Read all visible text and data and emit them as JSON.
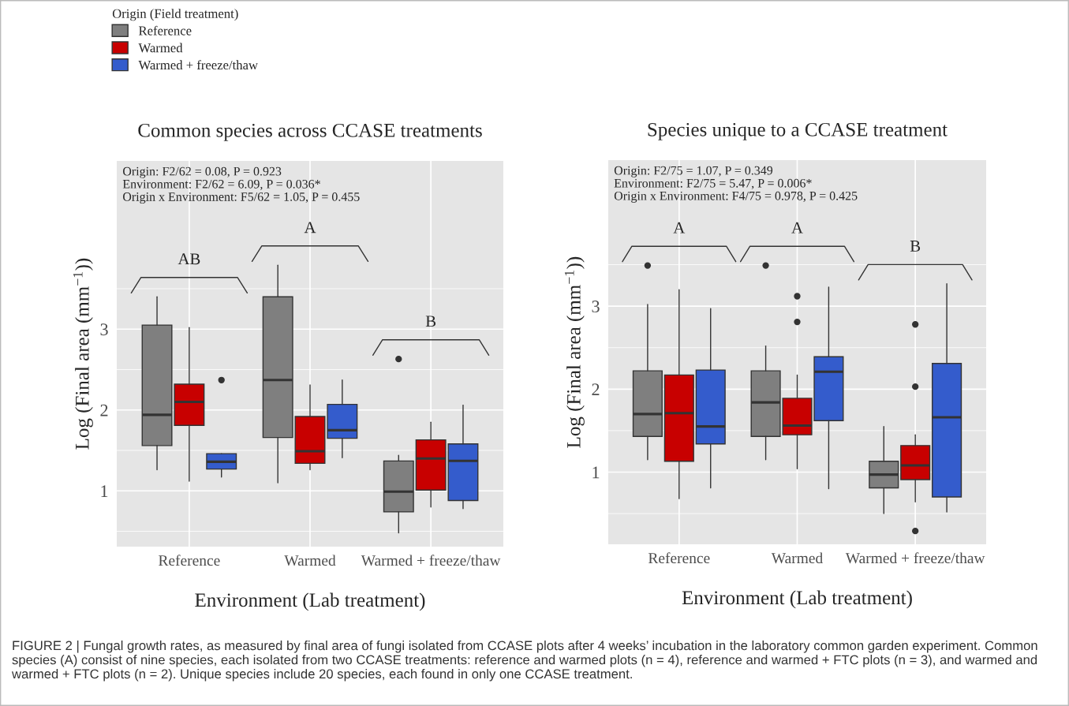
{
  "chart_data": [
    {
      "type": "box",
      "title": "Common species across CCASE treatments",
      "xlabel": "Environment (Lab treatment)",
      "ylabel": "Log (Final area (mm$^{−1}$))",
      "legend_title": "Origin (Field treatment)",
      "legend": "top left",
      "grid": true,
      "categories": [
        "Reference",
        "Warmed",
        "Warmed + freeze/thaw"
      ],
      "ylim": [
        0.31,
        5.08
      ],
      "yticks": [
        1,
        2,
        3
      ],
      "series": [
        {
          "name": "Reference",
          "color": "#7f7f7f",
          "boxes": [
            {
              "low": 1.26,
              "q1": 1.56,
              "median": 1.94,
              "q3": 3.05,
              "high": 3.4
            },
            {
              "low": 1.1,
              "q1": 1.66,
              "median": 2.37,
              "q3": 3.4,
              "high": 3.79
            },
            {
              "low": 0.48,
              "q1": 0.74,
              "median": 0.99,
              "q3": 1.37,
              "high": 1.44,
              "outliers": [
                2.63
              ]
            }
          ]
        },
        {
          "name": "Warmed",
          "color": "#c80000",
          "boxes": [
            {
              "low": 1.12,
              "q1": 1.81,
              "median": 2.1,
              "q3": 2.32,
              "high": 3.02
            },
            {
              "low": 1.26,
              "q1": 1.34,
              "median": 1.49,
              "q3": 1.92,
              "high": 2.31
            },
            {
              "low": 0.8,
              "q1": 1.01,
              "median": 1.4,
              "q3": 1.63,
              "high": 1.85
            }
          ]
        },
        {
          "name": "Warmed + freeze/thaw",
          "color": "#345ccc",
          "boxes": [
            {
              "low": 1.17,
              "q1": 1.27,
              "median": 1.36,
              "q3": 1.46,
              "high": 1.46,
              "outliers": [
                2.37
              ]
            },
            {
              "low": 1.41,
              "q1": 1.65,
              "median": 1.75,
              "q3": 2.07,
              "high": 2.37
            },
            {
              "low": 0.78,
              "q1": 0.88,
              "median": 1.37,
              "q3": 1.58,
              "high": 2.06
            }
          ]
        }
      ],
      "annotations": [
        "Origin: F2/62 = 0.08, P = 0.923",
        "Environment: F2/62 = 6.09, P = 0.036*",
        "Origin x Environment: F5/62 = 1.05, P = 0.455",
        "AB",
        "A",
        "B"
      ]
    },
    {
      "type": "box",
      "title": "Species unique to a CCASE treatment",
      "xlabel": "Environment (Lab treatment)",
      "ylabel": "Log (Final area (mm$^{−1}$))",
      "grid": true,
      "categories": [
        "Reference",
        "Warmed",
        "Warmed + freeze/thaw"
      ],
      "ylim": [
        0.13,
        4.76
      ],
      "yticks": [
        1,
        2,
        3
      ],
      "series": [
        {
          "color": "#7f7f7f",
          "boxes": [
            {
              "low": 1.15,
              "q1": 1.43,
              "median": 1.7,
              "q3": 2.22,
              "high": 3.02,
              "outliers": [
                3.49
              ]
            },
            {
              "low": 1.15,
              "q1": 1.43,
              "median": 1.84,
              "q3": 2.22,
              "high": 2.52,
              "outliers": [
                3.49
              ]
            },
            {
              "low": 0.5,
              "q1": 0.81,
              "median": 0.97,
              "q3": 1.13,
              "high": 1.55
            }
          ]
        },
        {
          "color": "#c80000",
          "boxes": [
            {
              "low": 0.68,
              "q1": 1.13,
              "median": 1.71,
              "q3": 2.17,
              "high": 3.2
            },
            {
              "low": 1.04,
              "q1": 1.45,
              "median": 1.56,
              "q3": 1.89,
              "high": 2.17,
              "outliers": [
                3.12,
                2.81
              ]
            },
            {
              "low": 0.64,
              "q1": 0.91,
              "median": 1.08,
              "q3": 1.32,
              "high": 1.45,
              "outliers": [
                2.78,
                2.03,
                0.29
              ]
            }
          ]
        },
        {
          "color": "#345ccc",
          "boxes": [
            {
              "low": 0.81,
              "q1": 1.34,
              "median": 1.55,
              "q3": 2.23,
              "high": 2.97
            },
            {
              "low": 0.8,
              "q1": 1.62,
              "median": 2.21,
              "q3": 2.39,
              "high": 3.23
            },
            {
              "low": 0.52,
              "q1": 0.7,
              "median": 1.66,
              "q3": 2.31,
              "high": 3.27
            }
          ]
        }
      ],
      "annotations": [
        "Origin: F2/75 = 1.07, P = 0.349",
        "Environment: F2/75 = 5.47, P = 0.006*",
        "Origin x Environment: F4/75 = 0.978, P = 0.425",
        "A",
        "A",
        "B",
        "FIGURE 2 | Fungal growth rates, as measured by final area of fungi isolated from CCASE plots after 4 weeks’ incubation in the laboratory common garden experiment. Common species (A) consist of nine species, each isolated from two CCASE treatments: reference and warmed plots (n = 4), reference and warmed + FTC plots (n = 3), and warmed and warmed + FTC plots (n = 2). Unique species include 20 species, each found in only one CCASE treatment."
      ]
    }
  ]
}
